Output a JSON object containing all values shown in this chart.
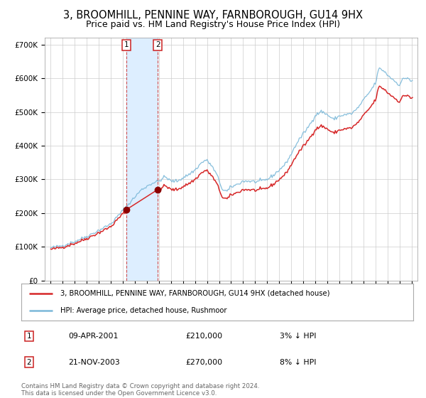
{
  "title": "3, BROOMHILL, PENNINE WAY, FARNBOROUGH, GU14 9HX",
  "subtitle": "Price paid vs. HM Land Registry's House Price Index (HPI)",
  "title_fontsize": 10.5,
  "subtitle_fontsize": 9,
  "legend_line1": "3, BROOMHILL, PENNINE WAY, FARNBOROUGH, GU14 9HX (detached house)",
  "legend_line2": "HPI: Average price, detached house, Rushmoor",
  "sale1_date": "09-APR-2001",
  "sale1_price": 210000,
  "sale1_pct": "3%",
  "sale1_dir": "↓",
  "sale2_date": "21-NOV-2003",
  "sale2_price": 270000,
  "sale2_pct": "8%",
  "sale2_dir": "↓",
  "footer": "Contains HM Land Registry data © Crown copyright and database right 2024.\nThis data is licensed under the Open Government Licence v3.0.",
  "hpi_color": "#7ab8d9",
  "price_color": "#d62728",
  "dot_color": "#8b0000",
  "shade_color": "#ddeeff",
  "vline_color": "#cc3333",
  "grid_color": "#cccccc",
  "bg_color": "#ffffff",
  "ylim_min": 0,
  "ylim_max": 720000,
  "yticks": [
    0,
    100000,
    200000,
    300000,
    400000,
    500000,
    600000,
    700000
  ],
  "ytick_labels": [
    "£0",
    "£100K",
    "£200K",
    "£300K",
    "£400K",
    "£500K",
    "£600K",
    "£700K"
  ],
  "xlim_min": 1994.5,
  "xlim_max": 2025.5,
  "sale1_year": 2001.27,
  "sale2_year": 2003.9
}
